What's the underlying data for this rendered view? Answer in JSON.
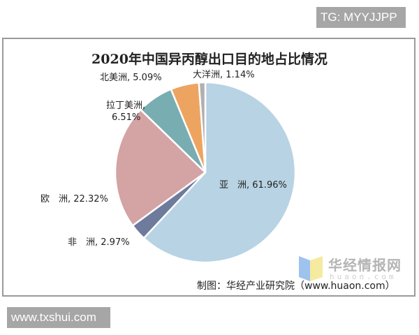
{
  "badges": {
    "top_right": "TG: MYYJJPP",
    "bottom_left": "www.txshui.com"
  },
  "chart_data": {
    "type": "pie",
    "title": "2020年中国异丙醇出口目的地占比情况",
    "start_angle": "12 o'clock",
    "direction": "clockwise",
    "categories": [
      "亚　洲",
      "非　洲",
      "欧　洲",
      "拉丁美洲",
      "北美洲",
      "大洋洲"
    ],
    "values": [
      61.96,
      2.97,
      22.32,
      6.51,
      5.09,
      1.14
    ],
    "colors": [
      "#b8d3e3",
      "#6e7b9c",
      "#d4a3a3",
      "#78adb2",
      "#eea461",
      "#b0b0b0"
    ],
    "labels": [
      {
        "name": "亚　洲",
        "value": "61.96%",
        "text": "亚　洲, 61.96%"
      },
      {
        "name": "非　洲",
        "value": "2.97%",
        "text": "非　洲, 2.97%"
      },
      {
        "name": "欧　洲",
        "value": "22.32%",
        "text": "欧　洲, 22.32%"
      },
      {
        "name": "拉丁美洲",
        "value": "6.51%",
        "text_line1": "拉丁美洲,",
        "text_line2": "6.51%"
      },
      {
        "name": "北美洲",
        "value": "5.09%",
        "text": "北美洲, 5.09%"
      },
      {
        "name": "大洋洲",
        "value": "1.14%",
        "text": "大洋洲, 1.14%"
      }
    ],
    "legend": "none (data labels)",
    "unit": "%"
  },
  "watermark": {
    "brand": "华经情报网",
    "domain": "huaon.com"
  },
  "source": "制图：华经产业研究院（www.huaon.com）"
}
